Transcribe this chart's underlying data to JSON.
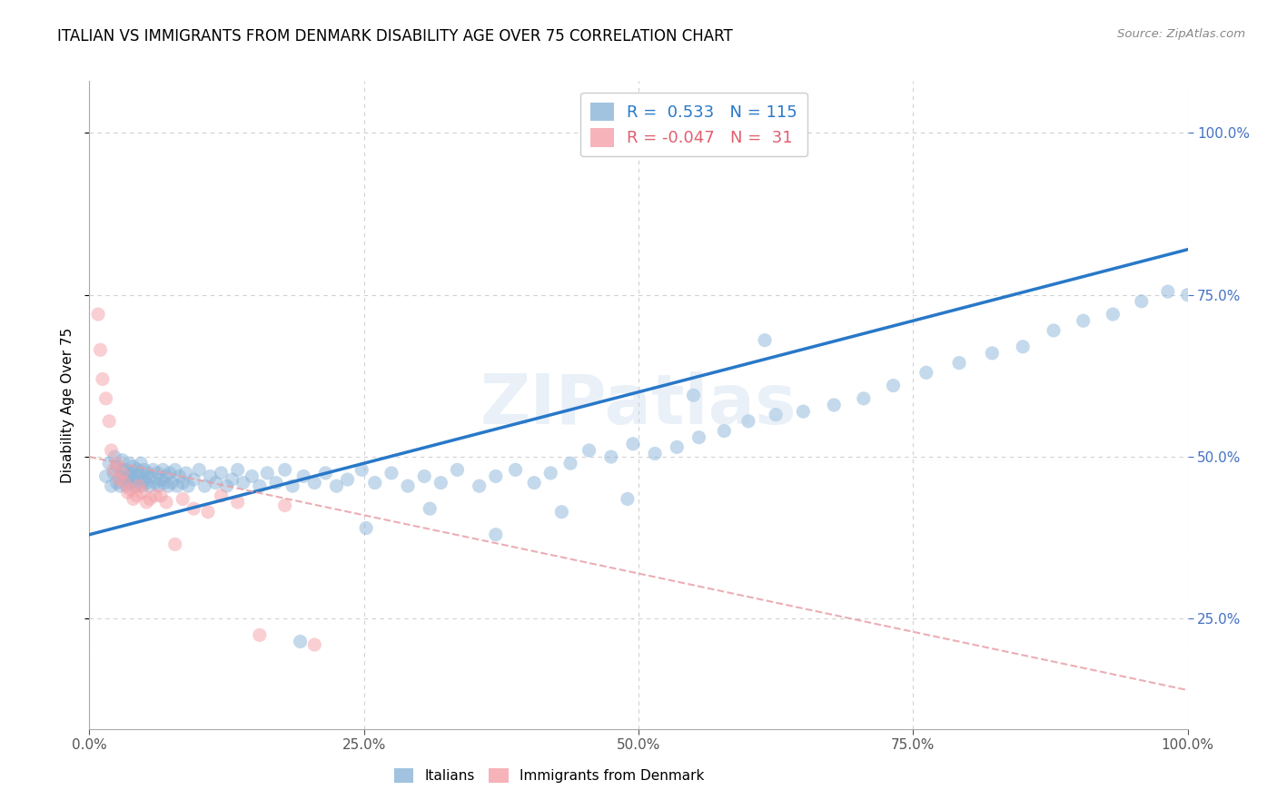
{
  "title": "ITALIAN VS IMMIGRANTS FROM DENMARK DISABILITY AGE OVER 75 CORRELATION CHART",
  "source": "Source: ZipAtlas.com",
  "ylabel": "Disability Age Over 75",
  "xlim": [
    0.0,
    1.0
  ],
  "ylim": [
    0.08,
    1.08
  ],
  "yticks": [
    0.25,
    0.5,
    0.75,
    1.0
  ],
  "xticks": [
    0.0,
    0.25,
    0.5,
    0.75,
    1.0
  ],
  "blue_R": 0.533,
  "blue_N": 115,
  "pink_R": -0.047,
  "pink_N": 31,
  "blue_color": "#8ab4d8",
  "pink_color": "#f4a0a8",
  "blue_line_color": "#2878c8",
  "pink_line_color": "#e8a0a8",
  "watermark": "ZIPatlas",
  "blue_line": [
    0.0,
    0.38,
    1.0,
    0.82
  ],
  "pink_line": [
    0.0,
    0.5,
    1.0,
    0.14
  ],
  "blue_scatter_x": [
    0.015,
    0.018,
    0.02,
    0.022,
    0.023,
    0.025,
    0.025,
    0.027,
    0.028,
    0.03,
    0.03,
    0.032,
    0.033,
    0.034,
    0.035,
    0.036,
    0.037,
    0.038,
    0.04,
    0.04,
    0.042,
    0.043,
    0.044,
    0.045,
    0.046,
    0.047,
    0.048,
    0.05,
    0.05,
    0.052,
    0.053,
    0.055,
    0.056,
    0.058,
    0.06,
    0.062,
    0.063,
    0.065,
    0.067,
    0.068,
    0.07,
    0.072,
    0.073,
    0.075,
    0.078,
    0.08,
    0.082,
    0.085,
    0.088,
    0.09,
    0.095,
    0.1,
    0.105,
    0.11,
    0.115,
    0.12,
    0.125,
    0.13,
    0.135,
    0.14,
    0.148,
    0.155,
    0.162,
    0.17,
    0.178,
    0.185,
    0.195,
    0.205,
    0.215,
    0.225,
    0.235,
    0.248,
    0.26,
    0.275,
    0.29,
    0.305,
    0.32,
    0.335,
    0.355,
    0.37,
    0.388,
    0.405,
    0.42,
    0.438,
    0.455,
    0.475,
    0.495,
    0.515,
    0.535,
    0.555,
    0.578,
    0.6,
    0.625,
    0.65,
    0.678,
    0.705,
    0.732,
    0.762,
    0.792,
    0.822,
    0.85,
    0.878,
    0.905,
    0.932,
    0.958,
    0.982,
    1.0,
    0.615,
    0.55,
    0.49,
    0.43,
    0.37,
    0.31,
    0.252,
    0.192
  ],
  "blue_scatter_y": [
    0.47,
    0.49,
    0.455,
    0.475,
    0.5,
    0.46,
    0.485,
    0.47,
    0.455,
    0.48,
    0.495,
    0.465,
    0.48,
    0.455,
    0.47,
    0.49,
    0.46,
    0.475,
    0.465,
    0.485,
    0.455,
    0.47,
    0.48,
    0.46,
    0.475,
    0.49,
    0.455,
    0.465,
    0.48,
    0.46,
    0.475,
    0.455,
    0.47,
    0.48,
    0.46,
    0.475,
    0.455,
    0.465,
    0.48,
    0.46,
    0.47,
    0.455,
    0.475,
    0.46,
    0.48,
    0.455,
    0.47,
    0.46,
    0.475,
    0.455,
    0.465,
    0.48,
    0.455,
    0.47,
    0.46,
    0.475,
    0.455,
    0.465,
    0.48,
    0.46,
    0.47,
    0.455,
    0.475,
    0.46,
    0.48,
    0.455,
    0.47,
    0.46,
    0.475,
    0.455,
    0.465,
    0.48,
    0.46,
    0.475,
    0.455,
    0.47,
    0.46,
    0.48,
    0.455,
    0.47,
    0.48,
    0.46,
    0.475,
    0.49,
    0.51,
    0.5,
    0.52,
    0.505,
    0.515,
    0.53,
    0.54,
    0.555,
    0.565,
    0.57,
    0.58,
    0.59,
    0.61,
    0.63,
    0.645,
    0.66,
    0.67,
    0.695,
    0.71,
    0.72,
    0.74,
    0.755,
    0.75,
    0.68,
    0.595,
    0.435,
    0.415,
    0.38,
    0.42,
    0.39,
    0.215
  ],
  "pink_scatter_x": [
    0.008,
    0.01,
    0.012,
    0.015,
    0.018,
    0.02,
    0.022,
    0.025,
    0.027,
    0.03,
    0.032,
    0.035,
    0.037,
    0.04,
    0.043,
    0.045,
    0.048,
    0.052,
    0.055,
    0.06,
    0.065,
    0.07,
    0.078,
    0.085,
    0.095,
    0.108,
    0.12,
    0.135,
    0.155,
    0.178,
    0.205
  ],
  "pink_scatter_y": [
    0.72,
    0.665,
    0.62,
    0.59,
    0.555,
    0.51,
    0.48,
    0.49,
    0.465,
    0.475,
    0.46,
    0.445,
    0.45,
    0.435,
    0.44,
    0.455,
    0.445,
    0.43,
    0.435,
    0.44,
    0.44,
    0.43,
    0.365,
    0.435,
    0.42,
    0.415,
    0.44,
    0.43,
    0.225,
    0.425,
    0.21
  ]
}
